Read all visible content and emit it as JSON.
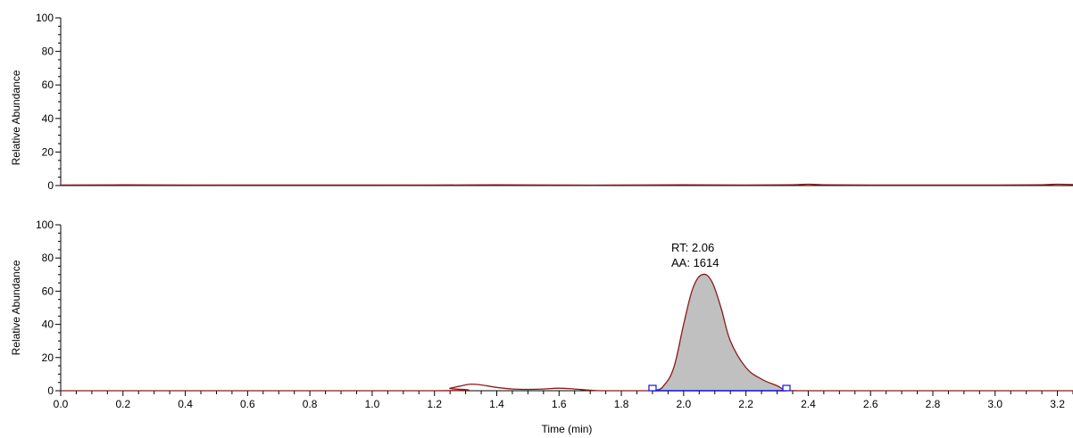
{
  "chart_data": [
    {
      "type": "line",
      "title": "",
      "xlabel": "",
      "ylabel": "Relative Abundance",
      "xlim": [
        0.0,
        3.25
      ],
      "ylim": [
        0,
        100
      ],
      "y_ticks": [
        "0",
        "20",
        "40",
        "60",
        "80",
        "100"
      ],
      "x_ticks": [],
      "line_color": "#8b1a1a",
      "x": [
        0.0,
        0.2,
        0.4,
        0.6,
        0.8,
        1.0,
        1.2,
        1.4,
        1.6,
        1.8,
        2.0,
        2.2,
        2.35,
        2.4,
        2.45,
        2.6,
        2.8,
        3.0,
        3.15,
        3.2,
        3.25
      ],
      "y": [
        0.3,
        0.4,
        0.3,
        0.3,
        0.3,
        0.3,
        0.3,
        0.4,
        0.3,
        0.3,
        0.4,
        0.3,
        0.5,
        0.8,
        0.5,
        0.3,
        0.3,
        0.3,
        0.5,
        0.8,
        0.6
      ]
    },
    {
      "type": "area",
      "title": "",
      "xlabel": "Time (min)",
      "ylabel": "Relative Abundance",
      "xlim": [
        0.0,
        3.25
      ],
      "ylim": [
        0,
        100
      ],
      "y_ticks": [
        "0",
        "20",
        "40",
        "60",
        "80",
        "100"
      ],
      "x_ticks": [
        "0.0",
        "0.2",
        "0.4",
        "0.6",
        "0.8",
        "1.0",
        "1.2",
        "1.4",
        "1.6",
        "1.8",
        "2.0",
        "2.2",
        "2.4",
        "2.6",
        "2.8",
        "3.0",
        "3.2"
      ],
      "line_color": "#8b1a1a",
      "fill_color": "#c0c0c0",
      "x": [
        0.0,
        1.2,
        1.25,
        1.3,
        1.32,
        1.35,
        1.4,
        1.45,
        1.5,
        1.55,
        1.6,
        1.65,
        1.7,
        1.75,
        1.9,
        1.94,
        1.97,
        2.0,
        2.03,
        2.06,
        2.09,
        2.12,
        2.15,
        2.2,
        2.25,
        2.3,
        2.33,
        2.4,
        3.25
      ],
      "y": [
        0,
        0,
        1.5,
        3.5,
        4,
        3.5,
        2,
        1,
        0.8,
        1,
        1.5,
        1,
        0.3,
        0,
        0,
        4,
        15,
        40,
        62,
        70,
        66,
        50,
        30,
        14,
        7,
        3,
        0.5,
        0,
        0
      ],
      "peak": {
        "rt_label": "RT: 2.06",
        "aa_label": "AA: 1614",
        "x": 2.06,
        "y": 70
      },
      "integration": {
        "start": 1.9,
        "end": 2.33,
        "color": "#1010e0"
      }
    }
  ]
}
